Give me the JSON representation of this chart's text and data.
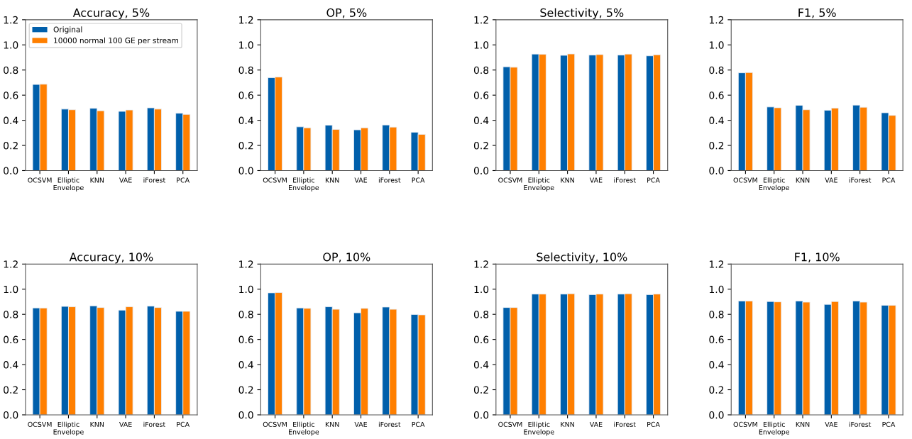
{
  "chart_data": [
    {
      "type": "bar",
      "title": "Accuracy, 5%",
      "categories": [
        "OCSVM",
        "Elliptic\nEnvelope",
        "KNN",
        "VAE",
        "iForest",
        "PCA"
      ],
      "series": [
        {
          "name": "Original",
          "color": "#005fab",
          "values": [
            0.685,
            0.489,
            0.495,
            0.471,
            0.499,
            0.456
          ]
        },
        {
          "name": "10000 normal 100 GE per stream",
          "color": "#ff7f00",
          "values": [
            0.687,
            0.484,
            0.476,
            0.482,
            0.489,
            0.447
          ]
        }
      ],
      "ylim": [
        0,
        1.2
      ],
      "yticks": [
        {
          "value": 0,
          "label": "0.0"
        },
        {
          "value": 0.2,
          "label": "0.2"
        },
        {
          "value": 0.4,
          "label": "0.4"
        },
        {
          "value": 0.6,
          "label": "0.6"
        },
        {
          "value": 0.8,
          "label": "0.8"
        },
        {
          "value": 1.0,
          "label": "1.0"
        },
        {
          "value": 1.2,
          "label": "1.2"
        }
      ],
      "legend": "top left"
    },
    {
      "type": "bar",
      "title": "OP, 5%",
      "categories": [
        "OCSVM",
        "Elliptic\nEnvelope",
        "KNN",
        "VAE",
        "iForest",
        "PCA"
      ],
      "series": [
        {
          "color": "#005fab",
          "values": [
            0.739,
            0.348,
            0.361,
            0.324,
            0.363,
            0.305
          ]
        },
        {
          "color": "#ff7f00",
          "values": [
            0.744,
            0.34,
            0.327,
            0.34,
            0.346,
            0.288
          ]
        }
      ],
      "ylim": [
        0,
        1.2
      ],
      "yticks": [
        {
          "value": 0,
          "label": "0.0"
        },
        {
          "value": 0.2,
          "label": "0.2"
        },
        {
          "value": 0.4,
          "label": "0.4"
        },
        {
          "value": 0.6,
          "label": "0.6"
        },
        {
          "value": 0.8,
          "label": "0.8"
        },
        {
          "value": 1.0,
          "label": "1.0"
        },
        {
          "value": 1.2,
          "label": "1.2"
        }
      ]
    },
    {
      "type": "bar",
      "title": "Selectivity, 5%",
      "categories": [
        "OCSVM",
        "Elliptic\nEnvelope",
        "KNN",
        "VAE",
        "iForest",
        "PCA"
      ],
      "series": [
        {
          "color": "#005fab",
          "values": [
            0.826,
            0.927,
            0.917,
            0.919,
            0.919,
            0.913
          ]
        },
        {
          "color": "#ff7f00",
          "values": [
            0.822,
            0.925,
            0.928,
            0.923,
            0.927,
            0.921
          ]
        }
      ],
      "ylim": [
        0,
        1.2
      ],
      "yticks": [
        {
          "value": 0,
          "label": "0.0"
        },
        {
          "value": 0.2,
          "label": "0.2"
        },
        {
          "value": 0.4,
          "label": "0.4"
        },
        {
          "value": 0.6,
          "label": "0.6"
        },
        {
          "value": 0.8,
          "label": "0.8"
        },
        {
          "value": 1.0,
          "label": "1.0"
        },
        {
          "value": 1.2,
          "label": "1.2"
        }
      ]
    },
    {
      "type": "bar",
      "title": "F1, 5%",
      "categories": [
        "OCSVM",
        "Elliptic\nEnvelope",
        "KNN",
        "VAE",
        "iForest",
        "PCA"
      ],
      "series": [
        {
          "color": "#005fab",
          "values": [
            0.778,
            0.506,
            0.519,
            0.48,
            0.521,
            0.46
          ]
        },
        {
          "color": "#ff7f00",
          "values": [
            0.78,
            0.5,
            0.484,
            0.497,
            0.504,
            0.439
          ]
        }
      ],
      "ylim": [
        0,
        1.2
      ],
      "yticks": [
        {
          "value": 0,
          "label": "0.0"
        },
        {
          "value": 0.2,
          "label": "0.2"
        },
        {
          "value": 0.4,
          "label": "0.4"
        },
        {
          "value": 0.6,
          "label": "0.6"
        },
        {
          "value": 0.8,
          "label": "0.8"
        },
        {
          "value": 1.0,
          "label": "1.0"
        },
        {
          "value": 1.2,
          "label": "1.2"
        }
      ]
    },
    {
      "type": "bar",
      "title": "Accuracy, 10%",
      "categories": [
        "OCSVM",
        "Elliptic\nEnvelope",
        "KNN",
        "VAE",
        "iForest",
        "PCA"
      ],
      "series": [
        {
          "color": "#005fab",
          "values": [
            0.851,
            0.863,
            0.867,
            0.833,
            0.865,
            0.824
          ]
        },
        {
          "color": "#ff7f00",
          "values": [
            0.85,
            0.86,
            0.854,
            0.86,
            0.854,
            0.824
          ]
        }
      ],
      "ylim": [
        0,
        1.2
      ],
      "yticks": [
        {
          "value": 0,
          "label": "0.0"
        },
        {
          "value": 0.2,
          "label": "0.2"
        },
        {
          "value": 0.4,
          "label": "0.4"
        },
        {
          "value": 0.6,
          "label": "0.6"
        },
        {
          "value": 0.8,
          "label": "0.8"
        },
        {
          "value": 1.0,
          "label": "1.0"
        },
        {
          "value": 1.2,
          "label": "1.2"
        }
      ]
    },
    {
      "type": "bar",
      "title": "OP, 10%",
      "categories": [
        "OCSVM",
        "Elliptic\nEnvelope",
        "KNN",
        "VAE",
        "iForest",
        "PCA"
      ],
      "series": [
        {
          "color": "#005fab",
          "values": [
            0.971,
            0.851,
            0.86,
            0.812,
            0.858,
            0.799
          ]
        },
        {
          "color": "#ff7f00",
          "values": [
            0.973,
            0.847,
            0.84,
            0.847,
            0.84,
            0.796
          ]
        }
      ],
      "ylim": [
        0,
        1.2
      ],
      "yticks": [
        {
          "value": 0,
          "label": "0.0"
        },
        {
          "value": 0.2,
          "label": "0.2"
        },
        {
          "value": 0.4,
          "label": "0.4"
        },
        {
          "value": 0.6,
          "label": "0.6"
        },
        {
          "value": 0.8,
          "label": "0.8"
        },
        {
          "value": 1.0,
          "label": "1.0"
        },
        {
          "value": 1.2,
          "label": "1.2"
        }
      ]
    },
    {
      "type": "bar",
      "title": "Selectivity, 10%",
      "categories": [
        "OCSVM",
        "Elliptic\nEnvelope",
        "KNN",
        "VAE",
        "iForest",
        "PCA"
      ],
      "series": [
        {
          "color": "#005fab",
          "values": [
            0.854,
            0.961,
            0.961,
            0.957,
            0.961,
            0.957
          ]
        },
        {
          "color": "#ff7f00",
          "values": [
            0.854,
            0.961,
            0.964,
            0.961,
            0.964,
            0.961
          ]
        }
      ],
      "ylim": [
        0,
        1.2
      ],
      "yticks": [
        {
          "value": 0,
          "label": "0.0"
        },
        {
          "value": 0.2,
          "label": "0.2"
        },
        {
          "value": 0.4,
          "label": "0.4"
        },
        {
          "value": 0.6,
          "label": "0.6"
        },
        {
          "value": 0.8,
          "label": "0.8"
        },
        {
          "value": 1.0,
          "label": "1.0"
        },
        {
          "value": 1.2,
          "label": "1.2"
        }
      ]
    },
    {
      "type": "bar",
      "title": "F1, 10%",
      "categories": [
        "OCSVM",
        "Elliptic\nEnvelope",
        "KNN",
        "VAE",
        "iForest",
        "PCA"
      ],
      "series": [
        {
          "color": "#005fab",
          "values": [
            0.906,
            0.902,
            0.906,
            0.879,
            0.906,
            0.872
          ]
        },
        {
          "color": "#ff7f00",
          "values": [
            0.906,
            0.899,
            0.897,
            0.902,
            0.897,
            0.872
          ]
        }
      ],
      "ylim": [
        0,
        1.2
      ],
      "yticks": [
        {
          "value": 0,
          "label": "0.0"
        },
        {
          "value": 0.2,
          "label": "0.2"
        },
        {
          "value": 0.4,
          "label": "0.4"
        },
        {
          "value": 0.6,
          "label": "0.6"
        },
        {
          "value": 0.8,
          "label": "0.8"
        },
        {
          "value": 1.0,
          "label": "1.0"
        },
        {
          "value": 1.2,
          "label": "1.2"
        }
      ]
    }
  ]
}
